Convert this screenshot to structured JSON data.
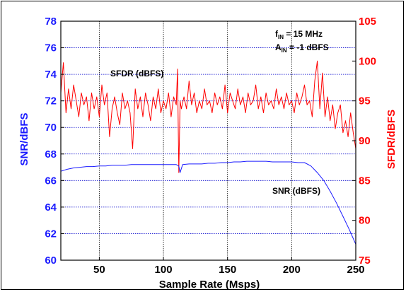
{
  "chart_data": {
    "type": "line",
    "title": "",
    "xlabel": "Sample Rate (Msps)",
    "ylabel_left": "SNR/dBFS",
    "ylabel_right": "SFDR/dBFS",
    "xlim": [
      20,
      250
    ],
    "ylim_left": [
      60,
      78
    ],
    "ylim_right": [
      75,
      105
    ],
    "x_ticks": [
      50,
      100,
      150,
      200,
      250
    ],
    "y_ticks_left": [
      60,
      62,
      64,
      66,
      68,
      70,
      72,
      74,
      76,
      78
    ],
    "y_ticks_right": [
      75,
      80,
      85,
      90,
      95,
      100,
      105
    ],
    "grid": true,
    "colors": {
      "snr": "#1a1aff",
      "sfdr": "#ff0000",
      "grid": "#0000cc"
    },
    "annotations": {
      "condition_f": "f",
      "condition_f_sub": "IN",
      "condition_f_val": " = 15 MHz",
      "condition_a": "A",
      "condition_a_sub": "IN",
      "condition_a_val": " = -1 dBFS",
      "sfdr_label": "SFDR (dBFS)",
      "snr_label": "SNR (dBFS)"
    },
    "series": [
      {
        "key": "snr",
        "axis": "left",
        "x": [
          20,
          25,
          30,
          35,
          40,
          45,
          50,
          55,
          60,
          65,
          70,
          75,
          80,
          85,
          90,
          95,
          100,
          105,
          110,
          112,
          113,
          115,
          120,
          125,
          130,
          135,
          140,
          145,
          150,
          155,
          160,
          165,
          170,
          175,
          180,
          185,
          190,
          195,
          200,
          205,
          210,
          215,
          220,
          225,
          230,
          235,
          240,
          245,
          250
        ],
        "y": [
          66.7,
          66.85,
          66.95,
          67.0,
          67.05,
          67.05,
          67.1,
          67.1,
          67.15,
          67.15,
          67.15,
          67.2,
          67.2,
          67.2,
          67.2,
          67.2,
          67.2,
          67.2,
          67.2,
          67.1,
          66.6,
          67.2,
          67.25,
          67.25,
          67.25,
          67.3,
          67.3,
          67.35,
          67.35,
          67.4,
          67.4,
          67.45,
          67.45,
          67.45,
          67.45,
          67.4,
          67.4,
          67.4,
          67.4,
          67.35,
          67.35,
          67.1,
          66.6,
          66.0,
          65.2,
          64.3,
          63.3,
          62.3,
          61.2
        ]
      },
      {
        "key": "sfdr",
        "axis": "right",
        "x": [
          20,
          22,
          24,
          26,
          28,
          30,
          32,
          34,
          36,
          38,
          40,
          42,
          44,
          46,
          48,
          50,
          52,
          54,
          56,
          58,
          60,
          62,
          64,
          66,
          68,
          70,
          72,
          74,
          76,
          78,
          80,
          82,
          84,
          86,
          88,
          90,
          92,
          94,
          96,
          98,
          100,
          102,
          104,
          106,
          108,
          110,
          111,
          112,
          113,
          114,
          116,
          118,
          120,
          122,
          124,
          126,
          128,
          130,
          132,
          134,
          136,
          138,
          140,
          142,
          144,
          146,
          148,
          150,
          152,
          154,
          156,
          158,
          160,
          162,
          164,
          166,
          168,
          170,
          172,
          174,
          176,
          178,
          180,
          182,
          184,
          186,
          188,
          190,
          192,
          194,
          196,
          198,
          200,
          202,
          204,
          206,
          208,
          210,
          212,
          214,
          216,
          218,
          220,
          222,
          224,
          226,
          228,
          230,
          232,
          234,
          236,
          238,
          240,
          242,
          244,
          246,
          248,
          250
        ],
        "y": [
          96.0,
          99.8,
          93.5,
          96.5,
          94.0,
          97.0,
          95.0,
          93.0,
          96.0,
          94.5,
          95.5,
          92.5,
          96.0,
          94.0,
          95.5,
          93.0,
          97.0,
          94.5,
          96.0,
          90.5,
          94.0,
          95.5,
          93.5,
          92.0,
          96.0,
          94.0,
          95.0,
          93.5,
          89.0,
          96.5,
          94.0,
          95.5,
          93.0,
          96.0,
          94.5,
          92.5,
          95.5,
          94.0,
          96.5,
          93.5,
          95.0,
          94.0,
          96.0,
          93.0,
          95.5,
          94.5,
          99.0,
          86.0,
          95.0,
          94.0,
          95.5,
          94.0,
          97.5,
          94.5,
          96.0,
          93.5,
          95.0,
          94.0,
          96.5,
          94.5,
          95.0,
          93.5,
          96.0,
          94.5,
          95.5,
          94.0,
          97.0,
          93.5,
          96.0,
          95.0,
          94.0,
          96.5,
          94.5,
          95.5,
          93.5,
          96.0,
          94.5,
          95.0,
          97.0,
          94.0,
          95.5,
          93.5,
          96.0,
          94.5,
          95.0,
          94.0,
          96.5,
          94.5,
          95.5,
          94.0,
          96.0,
          94.5,
          95.0,
          93.5,
          96.0,
          94.5,
          95.5,
          97.0,
          94.5,
          95.0,
          93.0,
          97.5,
          100.0,
          94.0,
          98.5,
          93.0,
          95.5,
          92.5,
          94.5,
          91.5,
          93.5,
          94.5,
          91.0,
          92.5,
          90.5,
          93.5,
          91.0,
          89.0
        ]
      }
    ]
  }
}
